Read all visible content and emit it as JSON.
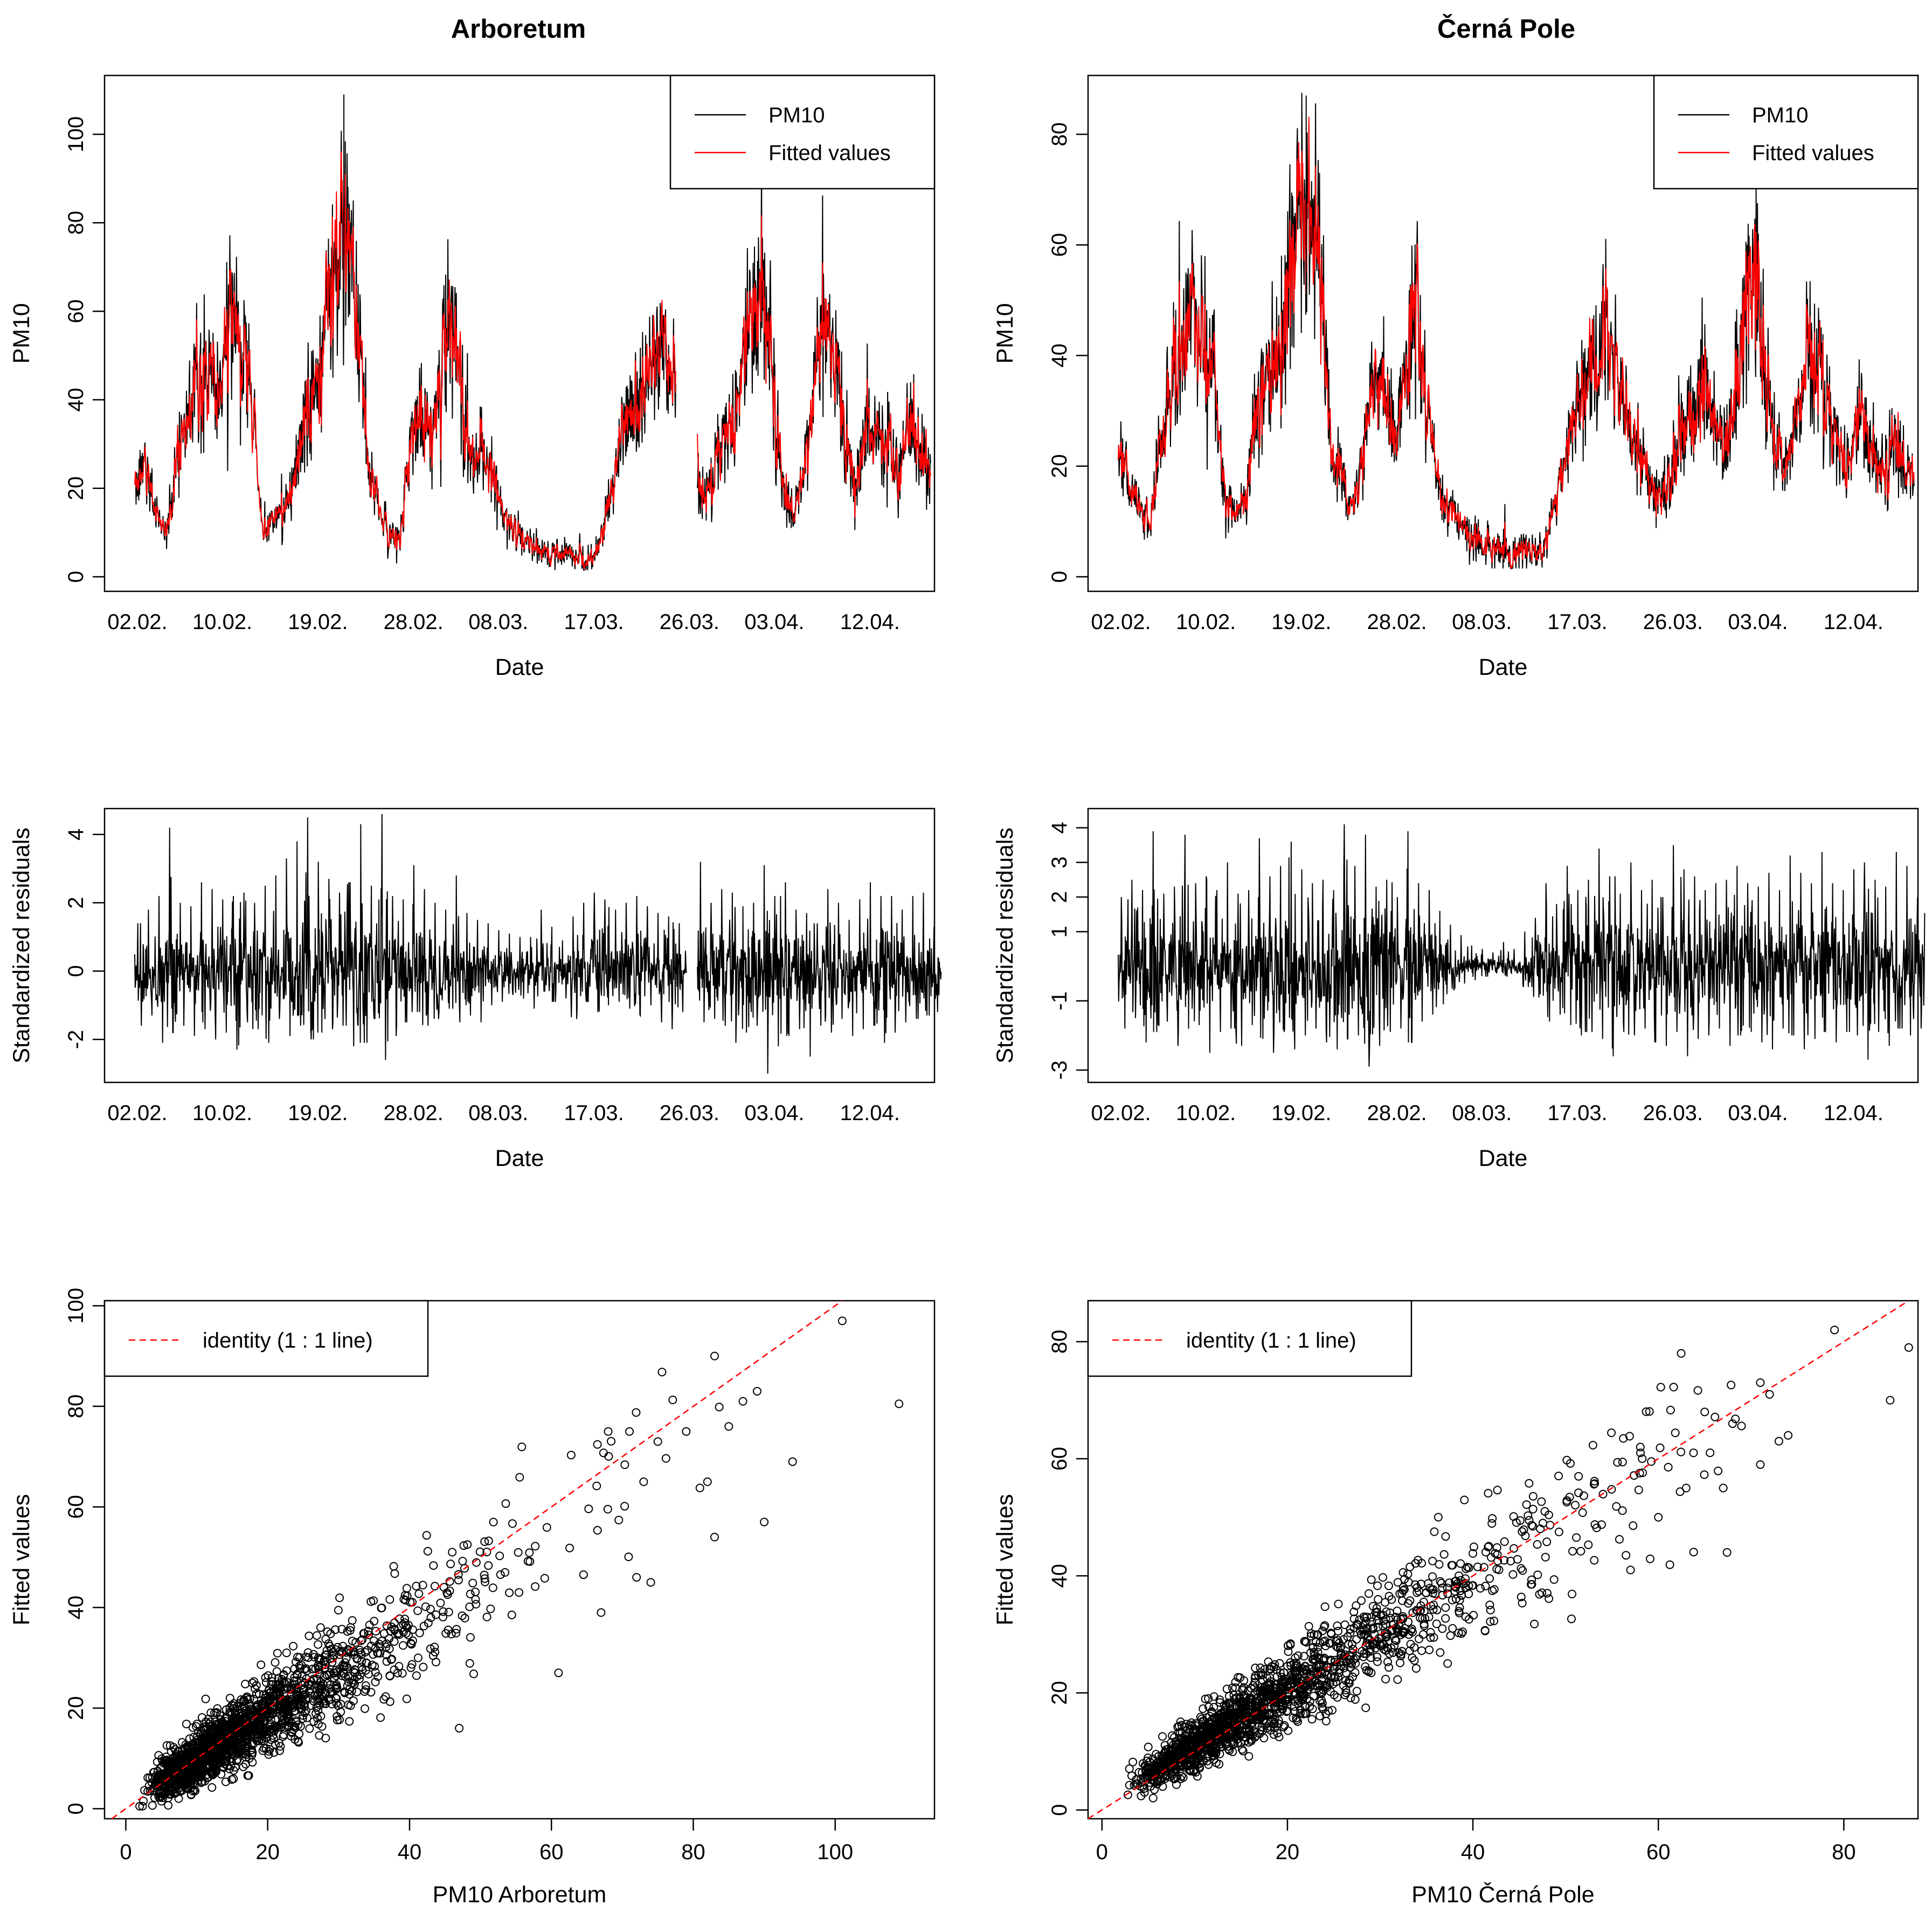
{
  "figure": {
    "columns": [
      "Arboretum",
      "Černá Pole"
    ]
  },
  "chart_data": [
    {
      "id": "ts-arboretum",
      "type": "line",
      "title": "Arboretum",
      "xlabel": "Date",
      "ylabel": "PM10",
      "x_tick_labels": [
        "02.02.",
        "10.02.",
        "19.02.",
        "28.02.",
        "08.03.",
        "17.03.",
        "26.03.",
        "03.04.",
        "12.04."
      ],
      "ylim": [
        0,
        110
      ],
      "y_ticks": [
        0,
        20,
        40,
        60,
        80,
        100
      ],
      "legend": {
        "position": "top-right",
        "entries": [
          {
            "label": "PM10",
            "color": "#000000"
          },
          {
            "label": "Fitted values",
            "color": "#ff0000"
          }
        ]
      },
      "gap": {
        "from_day": 51.5,
        "to_day": 53.2
      },
      "series": [
        {
          "name": "PM10",
          "color": "#000000",
          "x_day": [
            0,
            1,
            2,
            3,
            4,
            5,
            6,
            7,
            8,
            9,
            10,
            11,
            12,
            13,
            14,
            15,
            16,
            17,
            18,
            19,
            20,
            21,
            22,
            23,
            24,
            25,
            26,
            27,
            28,
            29,
            30,
            31,
            32,
            33,
            34,
            35,
            36,
            37,
            38,
            39,
            40,
            41,
            42,
            43,
            44,
            45,
            46,
            47,
            48,
            49,
            50,
            51,
            52,
            53,
            54,
            55,
            56,
            57,
            58,
            59,
            60,
            61,
            62,
            63,
            64,
            65,
            66,
            67,
            68,
            69,
            70,
            71,
            72,
            73,
            74,
            75
          ],
          "values": [
            22,
            25,
            15,
            10,
            28,
            36,
            42,
            45,
            40,
            62,
            46,
            42,
            10,
            12,
            15,
            22,
            34,
            45,
            60,
            72,
            75,
            60,
            25,
            15,
            10,
            8,
            32,
            38,
            30,
            48,
            62,
            35,
            25,
            28,
            20,
            12,
            10,
            8,
            6,
            5,
            6,
            5,
            5,
            4,
            8,
            22,
            32,
            40,
            45,
            48,
            46,
            42,
            null,
            22,
            18,
            30,
            36,
            40,
            58,
            65,
            48,
            20,
            14,
            22,
            45,
            58,
            48,
            30,
            20,
            36,
            32,
            28,
            24,
            34,
            29,
            25
          ]
        }
      ]
    },
    {
      "id": "ts-cerna-pole",
      "type": "line",
      "title": "Černá Pole",
      "xlabel": "Date",
      "ylabel": "PM10",
      "x_tick_labels": [
        "02.02.",
        "10.02.",
        "19.02.",
        "28.02.",
        "08.03.",
        "17.03.",
        "26.03.",
        "03.04.",
        "12.04."
      ],
      "ylim": [
        0,
        88
      ],
      "y_ticks": [
        0,
        20,
        40,
        60,
        80
      ],
      "legend": {
        "position": "top-right",
        "entries": [
          {
            "label": "PM10",
            "color": "#000000"
          },
          {
            "label": "Fitted values",
            "color": "#ff0000"
          }
        ]
      },
      "series": [
        {
          "name": "PM10",
          "color": "#000000",
          "x_day": [
            0,
            1,
            2,
            3,
            4,
            5,
            6,
            7,
            8,
            9,
            10,
            11,
            12,
            13,
            14,
            15,
            16,
            17,
            18,
            19,
            20,
            21,
            22,
            23,
            24,
            25,
            26,
            27,
            28,
            29,
            30,
            31,
            32,
            33,
            34,
            35,
            36,
            37,
            38,
            39,
            40,
            41,
            42,
            43,
            44,
            45,
            46,
            47,
            48,
            49,
            50,
            51,
            52,
            53,
            54,
            55,
            56,
            57,
            58,
            59,
            60,
            61,
            62,
            63,
            64,
            65,
            66,
            67,
            68,
            69,
            70,
            71,
            72,
            73,
            74,
            75
          ],
          "values": [
            22,
            18,
            12,
            10,
            25,
            34,
            40,
            48,
            42,
            38,
            15,
            12,
            14,
            28,
            36,
            40,
            55,
            62,
            66,
            58,
            25,
            18,
            12,
            20,
            38,
            34,
            25,
            40,
            45,
            30,
            18,
            12,
            10,
            8,
            6,
            5,
            5,
            4,
            6,
            5,
            4,
            12,
            20,
            28,
            34,
            40,
            45,
            36,
            28,
            24,
            16,
            14,
            18,
            26,
            30,
            36,
            28,
            22,
            30,
            48,
            56,
            36,
            24,
            20,
            26,
            42,
            38,
            30,
            24,
            20,
            30,
            22,
            18,
            25,
            20,
            17
          ]
        }
      ]
    },
    {
      "id": "res-arboretum",
      "type": "line",
      "xlabel": "Date",
      "ylabel": "Standardized residuals",
      "x_tick_labels": [
        "02.02.",
        "10.02.",
        "19.02.",
        "28.02.",
        "08.03.",
        "17.03.",
        "26.03.",
        "03.04.",
        "12.04."
      ],
      "ylim": [
        -3.1,
        4.6
      ],
      "y_ticks": [
        -2,
        0,
        2,
        4
      ],
      "series": [
        {
          "name": "Standardized residuals",
          "color": "#000000",
          "x_day": [
            0,
            1,
            2,
            3,
            4,
            5,
            6,
            7,
            8,
            9,
            10,
            11,
            12,
            13,
            14,
            15,
            16,
            17,
            18,
            19,
            20,
            21,
            22,
            23,
            24,
            25,
            26,
            27,
            28,
            29,
            30,
            31,
            32,
            33,
            34,
            35,
            36,
            37,
            38,
            39,
            40,
            41,
            42,
            43,
            44,
            45,
            46,
            47,
            48,
            49,
            50,
            51,
            52,
            53,
            54,
            55,
            56,
            57,
            58,
            59,
            60,
            61,
            62,
            63,
            64,
            65,
            66,
            67,
            68,
            69,
            70,
            71,
            72,
            73,
            74,
            75
          ],
          "upper": [
            1.4,
            1.8,
            2.2,
            4.2,
            2.0,
            1.9,
            2.6,
            2.4,
            2.1,
            2.2,
            2.3,
            2.0,
            2.5,
            2.8,
            3.3,
            3.8,
            4.5,
            3.2,
            2.7,
            2.3,
            2.6,
            4.3,
            2.5,
            4.6,
            2.2,
            2.1,
            3.1,
            2.4,
            2.0,
            1.8,
            2.8,
            1.7,
            1.5,
            1.4,
            1.2,
            1.1,
            1.0,
            1.0,
            1.8,
            1.3,
            0.9,
            1.6,
            2.0,
            2.3,
            2.1,
            1.8,
            2.0,
            2.2,
            1.9,
            1.7,
            1.6,
            1.4,
            null,
            3.2,
            2.0,
            2.4,
            2.3,
            1.9,
            2.0,
            3.1,
            2.2,
            2.6,
            1.8,
            1.7,
            1.4,
            2.4,
            2.0,
            1.5,
            2.1,
            2.6,
            2.2,
            2.2,
            1.8,
            2.2,
            2.3,
            1.3
          ],
          "lower": [
            -1.6,
            -1.3,
            -2.1,
            -1.8,
            -1.6,
            -1.9,
            -1.7,
            -2.0,
            -1.8,
            -2.3,
            -1.5,
            -1.7,
            -2.1,
            -1.4,
            -1.9,
            -1.6,
            -2.0,
            -1.8,
            -1.7,
            -1.6,
            -2.2,
            -2.1,
            -1.4,
            -2.6,
            -1.9,
            -1.5,
            -1.2,
            -1.6,
            -1.4,
            -1.1,
            -1.5,
            -1.3,
            -1.5,
            -1.0,
            -0.9,
            -0.7,
            -0.8,
            -1.1,
            -0.6,
            -0.9,
            -0.8,
            -1.4,
            -0.9,
            -1.2,
            -1.0,
            -0.9,
            -1.1,
            -1.3,
            -1.0,
            -1.5,
            -1.7,
            -1.2,
            null,
            -1.5,
            -1.4,
            -1.6,
            -2.1,
            -1.8,
            -1.6,
            -3.0,
            -2.2,
            -1.9,
            -1.7,
            -2.5,
            -1.6,
            -1.8,
            -1.4,
            -1.9,
            -1.7,
            -1.6,
            -2.1,
            -1.8,
            -1.5,
            -1.4,
            -1.3,
            -1.2
          ]
        }
      ]
    },
    {
      "id": "res-cerna-pole",
      "type": "line",
      "xlabel": "Date",
      "ylabel": "Standardized residuals",
      "x_tick_labels": [
        "02.02.",
        "10.02.",
        "19.02.",
        "28.02.",
        "08.03.",
        "17.03.",
        "26.03.",
        "03.04.",
        "12.04."
      ],
      "ylim": [
        -3.2,
        4.4
      ],
      "y_ticks": [
        -3,
        -1,
        1,
        2,
        3,
        4
      ],
      "series": [
        {
          "name": "Standardized residuals",
          "color": "#000000",
          "x_day": [
            0,
            1,
            2,
            3,
            4,
            5,
            6,
            7,
            8,
            9,
            10,
            11,
            12,
            13,
            14,
            15,
            16,
            17,
            18,
            19,
            20,
            21,
            22,
            23,
            24,
            25,
            26,
            27,
            28,
            29,
            30,
            31,
            32,
            33,
            34,
            35,
            36,
            37,
            38,
            39,
            40,
            41,
            42,
            43,
            44,
            45,
            46,
            47,
            48,
            49,
            50,
            51,
            52,
            53,
            54,
            55,
            56,
            57,
            58,
            59,
            60,
            61,
            62,
            63,
            64,
            65,
            66,
            67,
            68,
            69,
            70,
            71,
            72,
            73,
            74,
            75
          ],
          "upper": [
            2.0,
            2.5,
            2.2,
            3.9,
            2.1,
            2.3,
            3.8,
            2.4,
            2.6,
            2.2,
            3.0,
            2.1,
            2.2,
            3.7,
            2.6,
            2.9,
            3.6,
            2.8,
            2.4,
            2.5,
            2.2,
            4.1,
            2.9,
            3.8,
            2.3,
            2.5,
            2.0,
            3.9,
            2.4,
            2.2,
            1.6,
            1.2,
            0.9,
            0.6,
            0.5,
            0.4,
            0.7,
            0.5,
            1.0,
            1.4,
            2.4,
            1.8,
            2.9,
            2.2,
            2.5,
            3.4,
            2.6,
            2.1,
            3.0,
            2.2,
            2.5,
            2.0,
            3.5,
            2.8,
            2.6,
            2.2,
            2.4,
            2.5,
            2.9,
            2.4,
            2.3,
            2.7,
            2.2,
            3.2,
            2.7,
            2.4,
            3.3,
            2.4,
            2.2,
            2.8,
            3.0,
            2.5,
            2.3,
            3.3,
            2.9,
            2.0
          ],
          "lower": [
            -1.8,
            -1.5,
            -2.2,
            -1.9,
            -1.6,
            -2.3,
            -1.8,
            -1.7,
            -2.5,
            -1.9,
            -1.8,
            -2.3,
            -1.7,
            -2.1,
            -2.5,
            -1.9,
            -2.4,
            -2.0,
            -1.8,
            -2.2,
            -2.4,
            -2.1,
            -2.0,
            -2.9,
            -2.3,
            -1.9,
            -1.8,
            -2.2,
            -1.6,
            -1.4,
            -1.1,
            -0.7,
            -0.5,
            -0.4,
            -0.3,
            -0.2,
            -0.3,
            -0.2,
            -0.6,
            -0.9,
            -1.6,
            -1.4,
            -1.7,
            -2.0,
            -1.9,
            -2.1,
            -2.6,
            -1.9,
            -2.0,
            -1.8,
            -2.2,
            -2.3,
            -1.9,
            -2.6,
            -2.1,
            -2.0,
            -1.8,
            -2.3,
            -2.0,
            -1.9,
            -2.2,
            -2.4,
            -1.8,
            -2.0,
            -2.4,
            -2.1,
            -1.9,
            -2.2,
            -1.9,
            -2.0,
            -2.7,
            -1.9,
            -2.3,
            -1.8,
            -2.0,
            -1.8
          ]
        }
      ]
    },
    {
      "id": "sc-arboretum",
      "type": "scatter",
      "xlabel": "PM10 Arboretum",
      "ylabel": "Fitted values",
      "xlim": [
        -3,
        114
      ],
      "ylim": [
        -2,
        101
      ],
      "x_ticks": [
        0,
        20,
        40,
        60,
        80,
        100
      ],
      "y_ticks": [
        0,
        20,
        40,
        60,
        80,
        100
      ],
      "legend": {
        "position": "top-left",
        "entries": [
          {
            "label": "identity (1 : 1 line)",
            "color": "#ff0000",
            "style": "dashed"
          }
        ]
      },
      "identity_line": true,
      "cloud": {
        "n": 1700,
        "x_median": 16,
        "x_max": 85,
        "slope": 0.86,
        "spread_sd": 4.5
      },
      "highlight_points": [
        {
          "x": 101,
          "y": 97
        },
        {
          "x": 109,
          "y": 80.5
        },
        {
          "x": 83,
          "y": 90
        },
        {
          "x": 89,
          "y": 83
        },
        {
          "x": 87,
          "y": 81
        },
        {
          "x": 94,
          "y": 69
        },
        {
          "x": 90,
          "y": 57
        },
        {
          "x": 83,
          "y": 54
        },
        {
          "x": 68,
          "y": 75
        },
        {
          "x": 71,
          "y": 75
        },
        {
          "x": 75,
          "y": 73
        },
        {
          "x": 82,
          "y": 65
        },
        {
          "x": 73,
          "y": 65
        },
        {
          "x": 72,
          "y": 46
        },
        {
          "x": 61,
          "y": 27
        },
        {
          "x": 47,
          "y": 16
        },
        {
          "x": 74,
          "y": 45
        },
        {
          "x": 67,
          "y": 39
        },
        {
          "x": 85,
          "y": 76
        },
        {
          "x": 79,
          "y": 75
        }
      ]
    },
    {
      "id": "sc-cerna-pole",
      "type": "scatter",
      "xlabel": "PM10 Černá Pole",
      "ylabel": "Fitted values",
      "xlim": [
        -1.5,
        88
      ],
      "ylim": [
        -1.5,
        87
      ],
      "x_ticks": [
        0,
        20,
        40,
        60,
        80
      ],
      "y_ticks": [
        0,
        20,
        40,
        60,
        80
      ],
      "legend": {
        "position": "top-left",
        "entries": [
          {
            "label": "identity (1 : 1 line)",
            "color": "#ff0000",
            "style": "dashed"
          }
        ]
      },
      "identity_line": true,
      "cloud": {
        "n": 1600,
        "x_median": 18,
        "x_max": 70,
        "slope": 0.95,
        "spread_sd": 3.0
      },
      "highlight_points": [
        {
          "x": 79,
          "y": 82
        },
        {
          "x": 87,
          "y": 79
        },
        {
          "x": 85,
          "y": 70
        },
        {
          "x": 71,
          "y": 73
        },
        {
          "x": 72,
          "y": 71
        },
        {
          "x": 74,
          "y": 64
        },
        {
          "x": 73,
          "y": 63
        },
        {
          "x": 71,
          "y": 59
        },
        {
          "x": 67,
          "y": 55
        },
        {
          "x": 65,
          "y": 68
        },
        {
          "x": 68,
          "y": 66
        },
        {
          "x": 57,
          "y": 41
        },
        {
          "x": 63,
          "y": 55
        },
        {
          "x": 60,
          "y": 50
        }
      ]
    }
  ]
}
